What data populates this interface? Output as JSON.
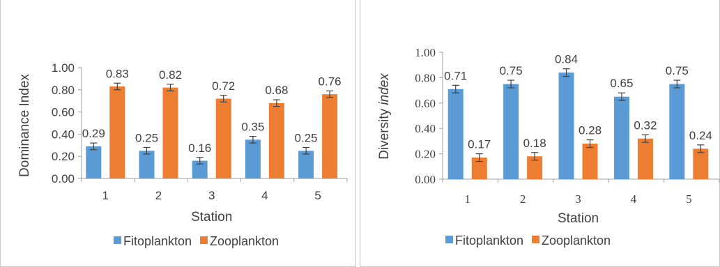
{
  "chart_data": [
    {
      "type": "bar",
      "title": "",
      "xlabel": "Station",
      "ylabel": "Dominance Index",
      "ylabel_italic_part": "",
      "categories": [
        "1",
        "2",
        "3",
        "4",
        "5"
      ],
      "ylim": [
        0,
        1
      ],
      "yticks": [
        "0.00",
        "0.20",
        "0.40",
        "0.60",
        "0.80",
        "1.00"
      ],
      "tick_font": "sans",
      "error_bars": true,
      "legend_position": "bottom",
      "series": [
        {
          "name": "Fitoplankton",
          "color": "#5b9bd5",
          "values": [
            0.29,
            0.25,
            0.16,
            0.35,
            0.25
          ],
          "labels": [
            "0.29",
            "0.25",
            "0.16",
            "0.35",
            "0.25"
          ],
          "errors": [
            0.03,
            0.03,
            0.03,
            0.03,
            0.03
          ]
        },
        {
          "name": "Zooplankton",
          "color": "#ed7d31",
          "values": [
            0.83,
            0.82,
            0.72,
            0.68,
            0.76
          ],
          "labels": [
            "0.83",
            "0.82",
            "0.72",
            "0.68",
            "0.76"
          ],
          "errors": [
            0.03,
            0.03,
            0.03,
            0.03,
            0.03
          ]
        }
      ]
    },
    {
      "type": "bar",
      "title": "",
      "xlabel": "Station",
      "ylabel": "Diversity ",
      "ylabel_italic_part": "index",
      "categories": [
        "1",
        "2",
        "3",
        "4",
        "5"
      ],
      "ylim": [
        0,
        1
      ],
      "yticks": [
        "0.00",
        "0.20",
        "0.40",
        "0.60",
        "0.80",
        "1.00"
      ],
      "tick_font": "serif",
      "error_bars": true,
      "legend_position": "bottom",
      "series": [
        {
          "name": "Fitoplankton",
          "color": "#5b9bd5",
          "values": [
            0.71,
            0.75,
            0.84,
            0.65,
            0.75
          ],
          "labels": [
            "0.71",
            "0.75",
            "0.84",
            "0.65",
            "0.75"
          ],
          "errors": [
            0.03,
            0.03,
            0.03,
            0.03,
            0.03
          ]
        },
        {
          "name": "Zooplankton",
          "color": "#ed7d31",
          "values": [
            0.17,
            0.18,
            0.28,
            0.32,
            0.24
          ],
          "labels": [
            "0.17",
            "0.18",
            "0.28",
            "0.32",
            "0.24"
          ],
          "errors": [
            0.03,
            0.03,
            0.03,
            0.03,
            0.03
          ]
        }
      ]
    }
  ]
}
